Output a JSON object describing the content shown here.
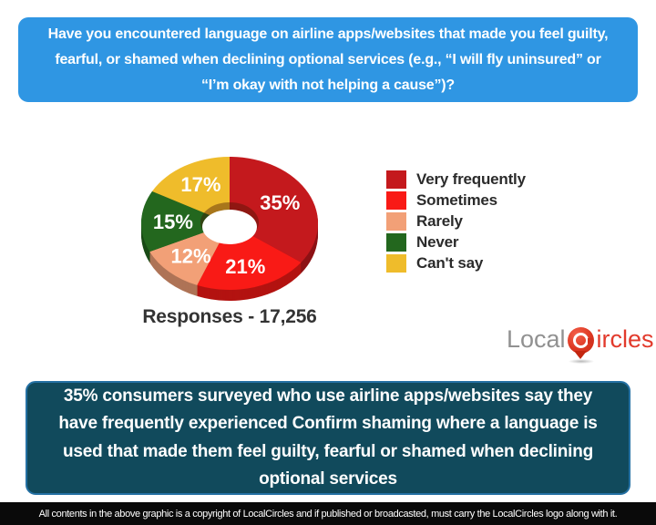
{
  "question": "Have you encountered language on airline apps/websites that made you feel guilty, fearful, or shamed when declining optional services (e.g., “I will fly uninsured” or “I’m okay with not helping a cause”)?",
  "chart_data": {
    "type": "pie",
    "donut": true,
    "start_angle_deg": 0,
    "direction": "clockwise",
    "labels": [
      "Very frequently",
      "Sometimes",
      "Rarely",
      "Never",
      "Can't say"
    ],
    "values": [
      35,
      21,
      12,
      15,
      17
    ],
    "colors": [
      "#c4191d",
      "#f91a16",
      "#f2a077",
      "#23671e",
      "#efbc2b"
    ],
    "value_label_format": "percent",
    "legend_position": "right",
    "responses_label": "Responses - 17,256"
  },
  "logo": {
    "part1": "Local",
    "part2": "ircles"
  },
  "summary": "35% consumers surveyed who use airline apps/websites say they have frequently experienced Confirm shaming where a language is used that made them feel guilty, fearful or shamed when declining optional services",
  "footer": "All contents in the above graphic is a copyright of LocalCircles and if published or broadcasted, must carry the LocalCircles logo along with it.",
  "colors": {
    "header_bg": "#2f96e3",
    "summary_bg": "#114a5c",
    "footer_bg": "#0a0a0a",
    "responses_text": "#333333"
  }
}
